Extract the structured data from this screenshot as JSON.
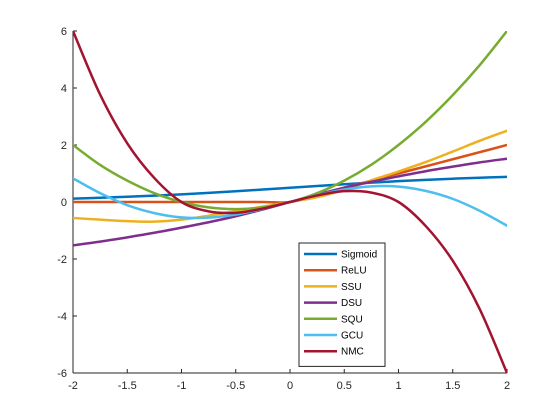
{
  "chart_data": {
    "type": "line",
    "title": "",
    "xlabel": "",
    "ylabel": "",
    "xlim": [
      -2,
      2
    ],
    "ylim": [
      -6,
      6
    ],
    "x_ticks": [
      -2,
      -1.5,
      -1,
      -0.5,
      0,
      0.5,
      1,
      1.5,
      2
    ],
    "y_ticks": [
      -6,
      -4,
      -2,
      0,
      2,
      4,
      6
    ],
    "x_tick_labels": [
      "-2",
      "-1.5",
      "-1",
      "-0.5",
      "0",
      "0.5",
      "1",
      "1.5",
      "2"
    ],
    "y_tick_labels": [
      "-6",
      "-4",
      "-2",
      "0",
      "2",
      "4",
      "6"
    ],
    "grid": false,
    "box": false,
    "legend_position": "lower-center",
    "x": [
      -2.0,
      -1.75,
      -1.5,
      -1.25,
      -1.0,
      -0.75,
      -0.5,
      -0.25,
      0.0,
      0.25,
      0.5,
      0.75,
      1.0,
      1.25,
      1.5,
      1.75,
      2.0
    ],
    "series": [
      {
        "name": "Sigmoid",
        "color": "#0072BD",
        "values": [
          0.12,
          0.148,
          0.182,
          0.223,
          0.269,
          0.321,
          0.378,
          0.438,
          0.5,
          0.562,
          0.622,
          0.679,
          0.731,
          0.777,
          0.818,
          0.852,
          0.88
        ]
      },
      {
        "name": "ReLU",
        "color": "#D95319",
        "values": [
          0,
          0,
          0,
          0,
          0,
          0,
          0,
          0,
          0,
          0.25,
          0.5,
          0.75,
          1.0,
          1.25,
          1.5,
          1.75,
          2.0
        ]
      },
      {
        "name": "SSU",
        "color": "#EDB120",
        "values": [
          -0.56,
          -0.62,
          -0.67,
          -0.69,
          -0.62,
          -0.48,
          -0.32,
          -0.16,
          0,
          0.17,
          0.43,
          0.76,
          1.07,
          1.4,
          1.77,
          2.15,
          2.5
        ]
      },
      {
        "name": "DSU",
        "color": "#7E2F8E",
        "values": [
          -1.52,
          -1.39,
          -1.24,
          -1.08,
          -0.9,
          -0.71,
          -0.5,
          -0.26,
          0,
          0.26,
          0.5,
          0.71,
          0.9,
          1.08,
          1.24,
          1.39,
          1.52
        ]
      },
      {
        "name": "SQU",
        "color": "#77AC30",
        "values": [
          2.0,
          1.3,
          0.75,
          0.31,
          0.0,
          -0.19,
          -0.25,
          -0.19,
          0,
          0.31,
          0.75,
          1.31,
          2.0,
          2.81,
          3.75,
          4.81,
          6.0
        ]
      },
      {
        "name": "GCU",
        "color": "#4DBEEE",
        "values": [
          0.83,
          0.31,
          -0.11,
          -0.39,
          -0.54,
          -0.55,
          -0.44,
          -0.24,
          0,
          0.24,
          0.44,
          0.55,
          0.54,
          0.39,
          0.11,
          -0.31,
          -0.83
        ]
      },
      {
        "name": "NMC",
        "color": "#A2142F",
        "values": [
          6.0,
          3.77,
          2.06,
          0.84,
          0.0,
          -0.33,
          -0.38,
          -0.23,
          0,
          0.23,
          0.38,
          0.33,
          0.0,
          -0.84,
          -2.06,
          -3.77,
          -6.0
        ]
      }
    ]
  }
}
